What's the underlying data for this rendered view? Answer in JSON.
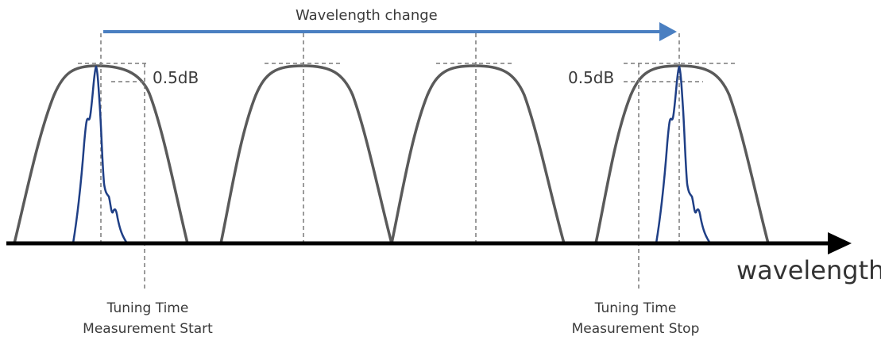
{
  "diagram": {
    "top_arrow_label": "Wavelength change",
    "db_label_left": "0.5dB",
    "db_label_right": "0.5dB",
    "axis_label": "wavelength",
    "caption_start": {
      "line1": "Tuning Time",
      "line2": "Measurement Start"
    },
    "caption_stop": {
      "line1": "Tuning Time",
      "line2": "Measurement Stop"
    },
    "colors": {
      "filter_curve": "#5a5a5a",
      "spectrum_curve": "#1f3f86",
      "top_arrow": "#4a7fc1",
      "axis": "#000000",
      "dashed_lines": "#7a7a7a"
    }
  }
}
